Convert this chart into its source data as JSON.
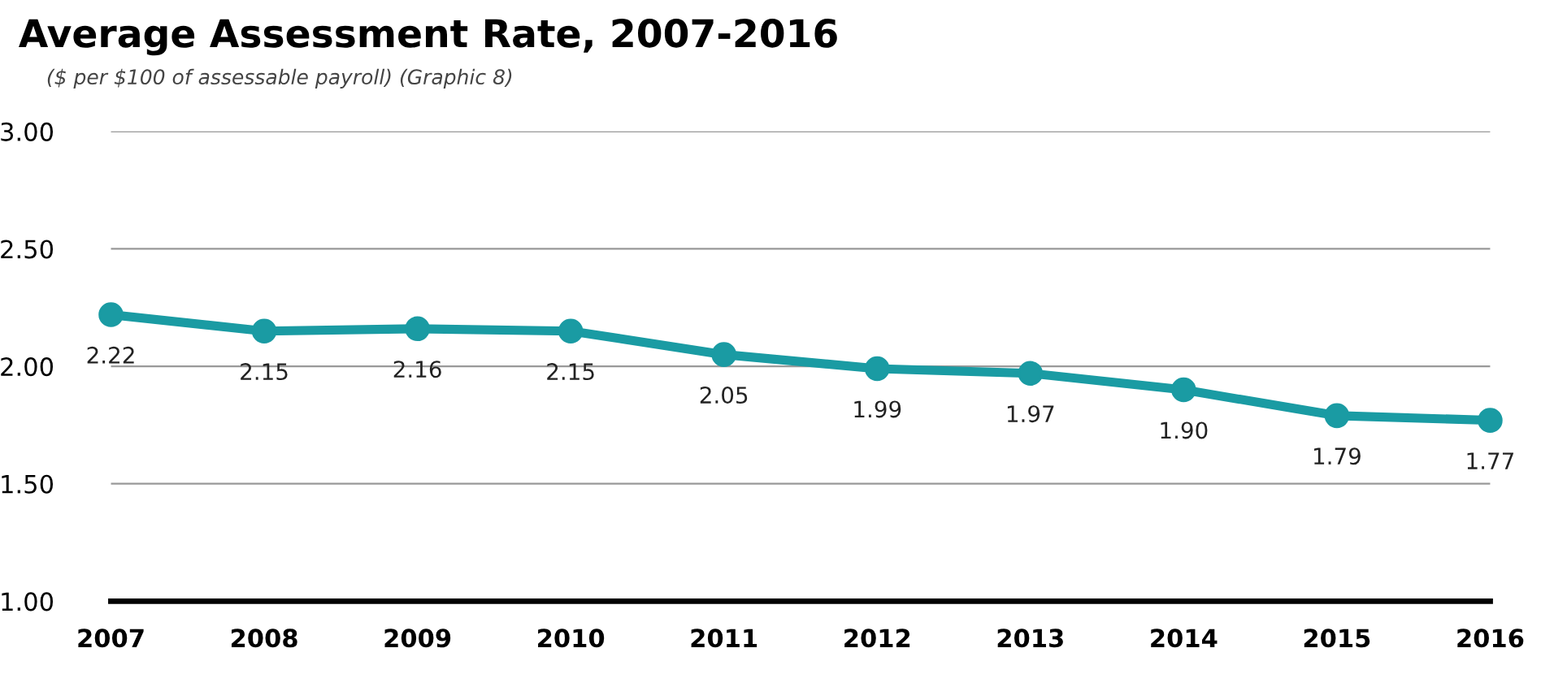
{
  "chart_data": {
    "type": "line",
    "title": "Average Assessment Rate, 2007-2016",
    "subtitle": "($ per $100 of assessable payroll) (Graphic 8)",
    "categories": [
      "2007",
      "2008",
      "2009",
      "2010",
      "2011",
      "2012",
      "2013",
      "2014",
      "2015",
      "2016"
    ],
    "series": [
      {
        "color": "#1a9ba3",
        "values": [
          2.22,
          2.15,
          2.16,
          2.15,
          2.05,
          1.99,
          1.97,
          1.9,
          1.79,
          1.77
        ],
        "value_labels": [
          "2.22",
          "2.15",
          "2.16",
          "2.15",
          "2.05",
          "1.99",
          "1.97",
          "1.90",
          "1.79",
          "1.77"
        ]
      }
    ],
    "ylim": [
      1,
      3
    ],
    "yticks": [
      {
        "value": 1,
        "label": "1.00"
      },
      {
        "value": 1.5,
        "label": "1.50"
      },
      {
        "value": 2,
        "label": "2.00"
      },
      {
        "value": 2.5,
        "label": "2.50"
      },
      {
        "value": 3,
        "label": "3.00"
      }
    ],
    "grid": "y",
    "marker": "circle",
    "line_style": "solid",
    "legend": false
  }
}
